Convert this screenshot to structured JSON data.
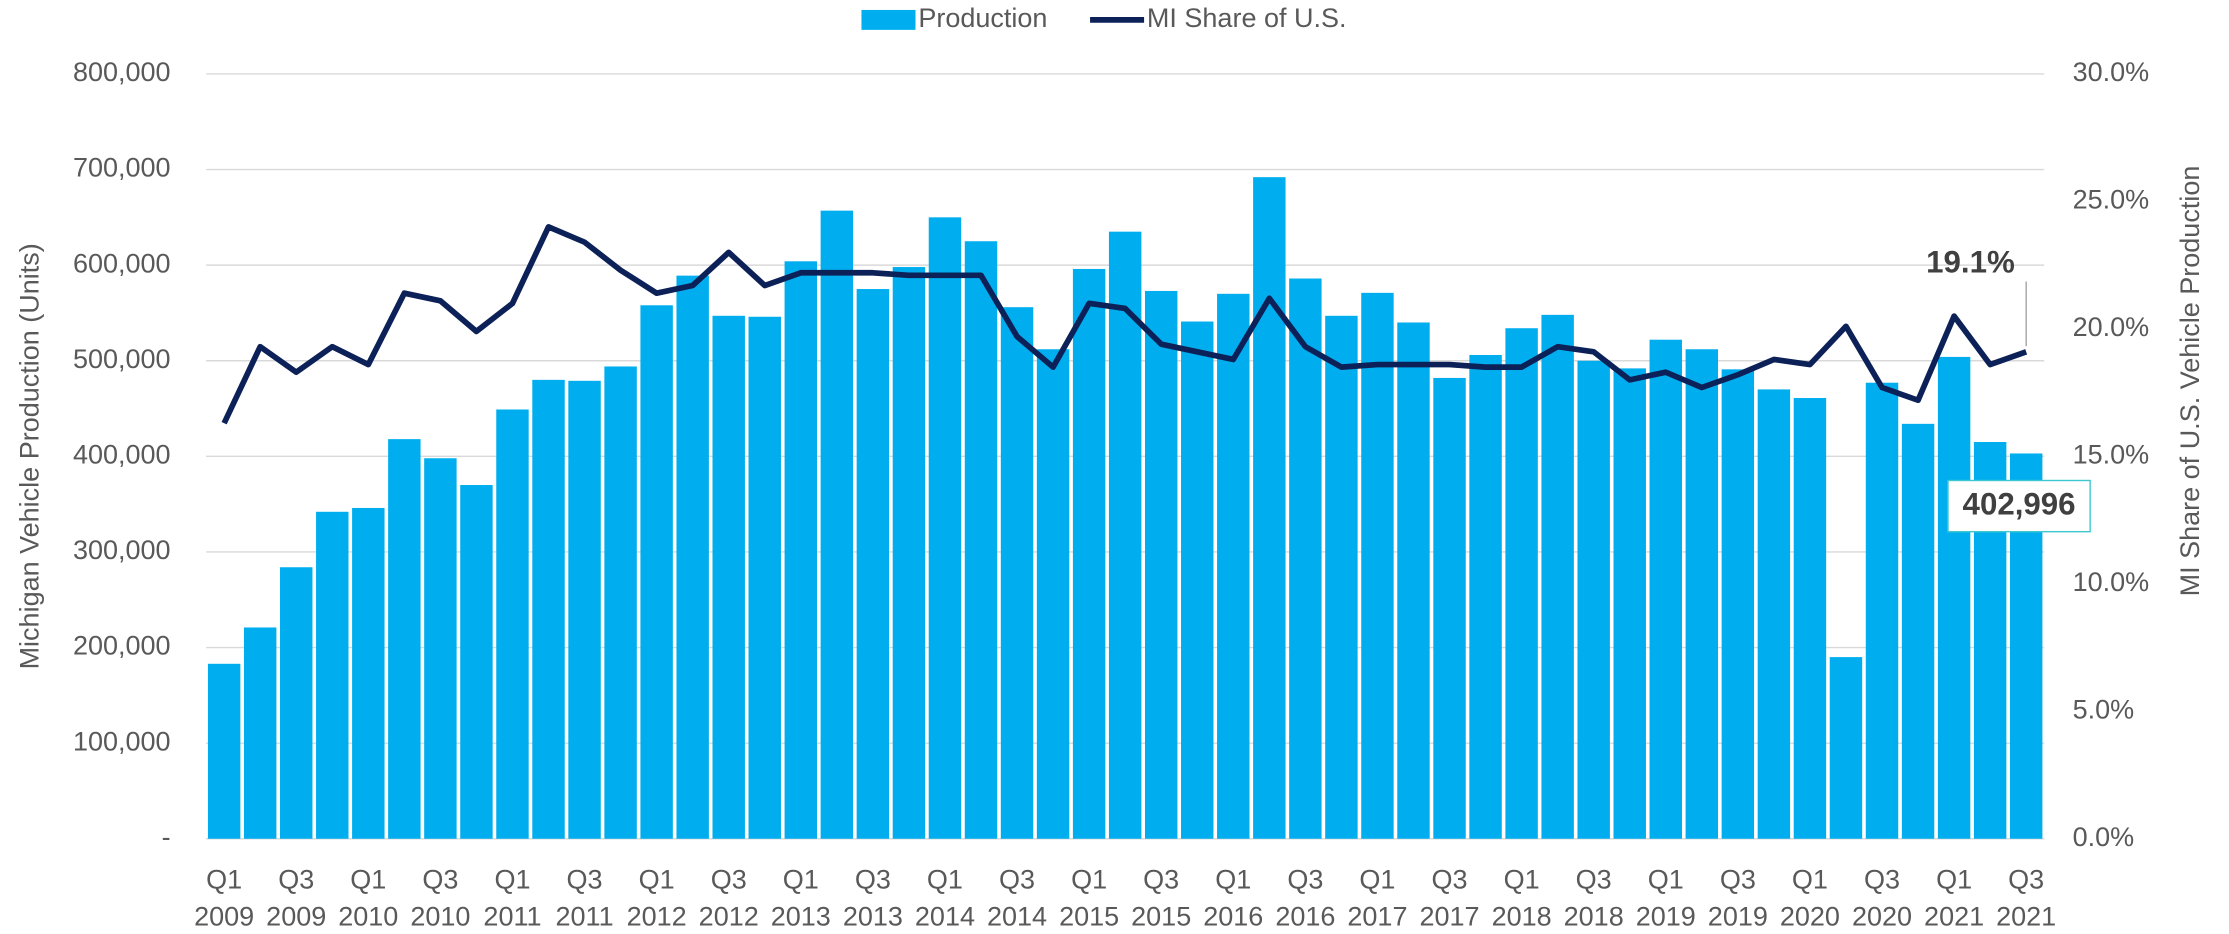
{
  "chart_data": {
    "type": "bar_line",
    "categories": [
      [
        "Q1",
        "2009"
      ],
      null,
      [
        "Q3",
        "2009"
      ],
      null,
      [
        "Q1",
        "2010"
      ],
      null,
      [
        "Q3",
        "2010"
      ],
      null,
      [
        "Q1",
        "2011"
      ],
      null,
      [
        "Q3",
        "2011"
      ],
      null,
      [
        "Q1",
        "2012"
      ],
      null,
      [
        "Q3",
        "2012"
      ],
      null,
      [
        "Q1",
        "2013"
      ],
      null,
      [
        "Q3",
        "2013"
      ],
      null,
      [
        "Q1",
        "2014"
      ],
      null,
      [
        "Q3",
        "2014"
      ],
      null,
      [
        "Q1",
        "2015"
      ],
      null,
      [
        "Q3",
        "2015"
      ],
      null,
      [
        "Q1",
        "2016"
      ],
      null,
      [
        "Q3",
        "2016"
      ],
      null,
      [
        "Q1",
        "2017"
      ],
      null,
      [
        "Q3",
        "2017"
      ],
      null,
      [
        "Q1",
        "2018"
      ],
      null,
      [
        "Q3",
        "2018"
      ],
      null,
      [
        "Q1",
        "2019"
      ],
      null,
      [
        "Q3",
        "2019"
      ],
      null,
      [
        "Q1",
        "2020"
      ],
      null,
      [
        "Q3",
        "2020"
      ],
      null,
      [
        "Q1",
        "2021"
      ],
      null,
      [
        "Q3",
        "2021"
      ]
    ],
    "series": [
      {
        "name": "Production",
        "kind": "bar",
        "color": "#00aeef",
        "values": [
          183000,
          221000,
          284000,
          342000,
          346000,
          418000,
          398000,
          370000,
          449000,
          480000,
          479000,
          494000,
          558000,
          589000,
          547000,
          546000,
          604000,
          657000,
          575000,
          598000,
          650000,
          625000,
          556000,
          512000,
          596000,
          635000,
          573000,
          541000,
          570000,
          692000,
          586000,
          547000,
          571000,
          540000,
          482000,
          506000,
          534000,
          548000,
          500000,
          492000,
          522000,
          512000,
          491000,
          470000,
          461000,
          190000,
          477000,
          434000,
          504000,
          415000,
          402996
        ],
        "value_labels": [
          null,
          null,
          null,
          null,
          null,
          null,
          null,
          null,
          null,
          null,
          null,
          null,
          null,
          null,
          null,
          null,
          null,
          null,
          null,
          null,
          null,
          null,
          null,
          null,
          null,
          null,
          null,
          null,
          null,
          null,
          null,
          null,
          null,
          null,
          null,
          null,
          null,
          null,
          null,
          null,
          null,
          null,
          null,
          null,
          null,
          null,
          null,
          null,
          null,
          null,
          "402,996"
        ]
      },
      {
        "name": "MI Share of U.S.",
        "kind": "line",
        "axis": "y2",
        "color": "#0c2157",
        "values": [
          16.3,
          19.3,
          18.3,
          19.3,
          18.6,
          21.4,
          21.1,
          19.9,
          21.0,
          24.0,
          23.4,
          22.3,
          21.4,
          21.7,
          23.0,
          21.7,
          22.2,
          22.2,
          22.2,
          22.1,
          22.1,
          22.1,
          19.7,
          18.5,
          21.0,
          20.8,
          19.4,
          19.1,
          18.8,
          21.2,
          19.3,
          18.5,
          18.6,
          18.6,
          18.6,
          18.5,
          18.5,
          19.3,
          19.1,
          18.0,
          18.3,
          17.7,
          18.2,
          18.8,
          18.6,
          20.1,
          17.7,
          17.2,
          20.5,
          18.6,
          19.1
        ],
        "value_labels": [
          null,
          null,
          null,
          null,
          null,
          null,
          null,
          null,
          null,
          null,
          null,
          null,
          null,
          null,
          null,
          null,
          null,
          null,
          null,
          null,
          null,
          null,
          null,
          null,
          null,
          null,
          null,
          null,
          null,
          null,
          null,
          null,
          null,
          null,
          null,
          null,
          null,
          null,
          null,
          null,
          null,
          null,
          null,
          null,
          null,
          null,
          null,
          null,
          null,
          null,
          "19.1%"
        ]
      }
    ],
    "y_label": "Michigan Vehicle Production (Units)",
    "y2_label": "MI Share of U.S. Vehicle Production",
    "ylim": [
      0,
      800000
    ],
    "yticks": [
      {
        "value": 0,
        "label": "-"
      },
      {
        "value": 100000,
        "label": "100,000"
      },
      {
        "value": 200000,
        "label": "200,000"
      },
      {
        "value": 300000,
        "label": "300,000"
      },
      {
        "value": 400000,
        "label": "400,000"
      },
      {
        "value": 500000,
        "label": "500,000"
      },
      {
        "value": 600000,
        "label": "600,000"
      },
      {
        "value": 700000,
        "label": "700,000"
      },
      {
        "value": 800000,
        "label": "800,000"
      }
    ],
    "y2lim": [
      0,
      30
    ],
    "y2ticks": [
      {
        "value": 0,
        "label": "0.0%"
      },
      {
        "value": 5,
        "label": "5.0%"
      },
      {
        "value": 10,
        "label": "10.0%"
      },
      {
        "value": 15,
        "label": "15.0%"
      },
      {
        "value": 20,
        "label": "20.0%"
      },
      {
        "value": 25,
        "label": "25.0%"
      },
      {
        "value": 30,
        "label": "30.0%"
      }
    ],
    "grid": true,
    "legend": "top"
  }
}
